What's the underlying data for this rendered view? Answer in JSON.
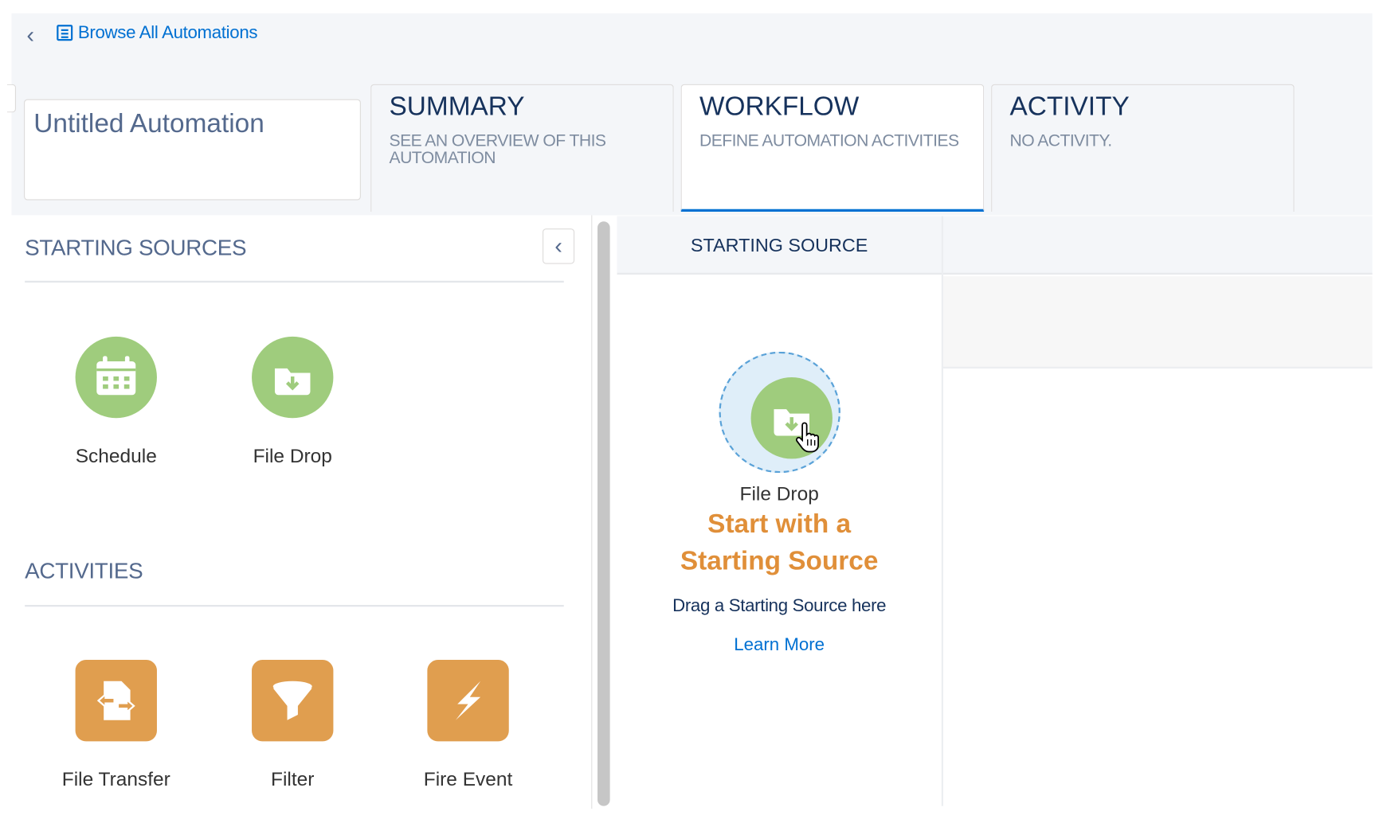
{
  "breadcrumb": {
    "link": "Browse All Automations"
  },
  "automation": {
    "name": "Untitled Automation"
  },
  "tabs": [
    {
      "title": "SUMMARY",
      "subtitle": "SEE AN OVERVIEW OF THIS AUTOMATION",
      "active": false
    },
    {
      "title": "WORKFLOW",
      "subtitle": "DEFINE AUTOMATION ACTIVITIES",
      "active": true
    },
    {
      "title": "ACTIVITY",
      "subtitle": "NO ACTIVITY.",
      "active": false
    }
  ],
  "sidebar": {
    "starting_sources_title": "STARTING SOURCES",
    "starting_sources": [
      {
        "label": "Schedule",
        "icon": "calendar-icon"
      },
      {
        "label": "File Drop",
        "icon": "folder-download-icon"
      }
    ],
    "activities_title": "ACTIVITIES",
    "activities": [
      {
        "label": "File Transfer",
        "icon": "file-transfer-icon"
      },
      {
        "label": "Filter",
        "icon": "filter-icon"
      },
      {
        "label": "Fire Event",
        "icon": "lightning-icon"
      }
    ]
  },
  "canvas": {
    "column_header": "STARTING SOURCE",
    "dragged_label": "File Drop",
    "heading_line1": "Start with a",
    "heading_line2": "Starting Source",
    "instruction": "Drag a Starting Source here",
    "learn_more": "Learn More"
  },
  "colors": {
    "accent": "#0070d2",
    "source_green": "#9fcc7d",
    "activity_orange": "#e09e4f",
    "heading_orange": "#e08f39"
  }
}
